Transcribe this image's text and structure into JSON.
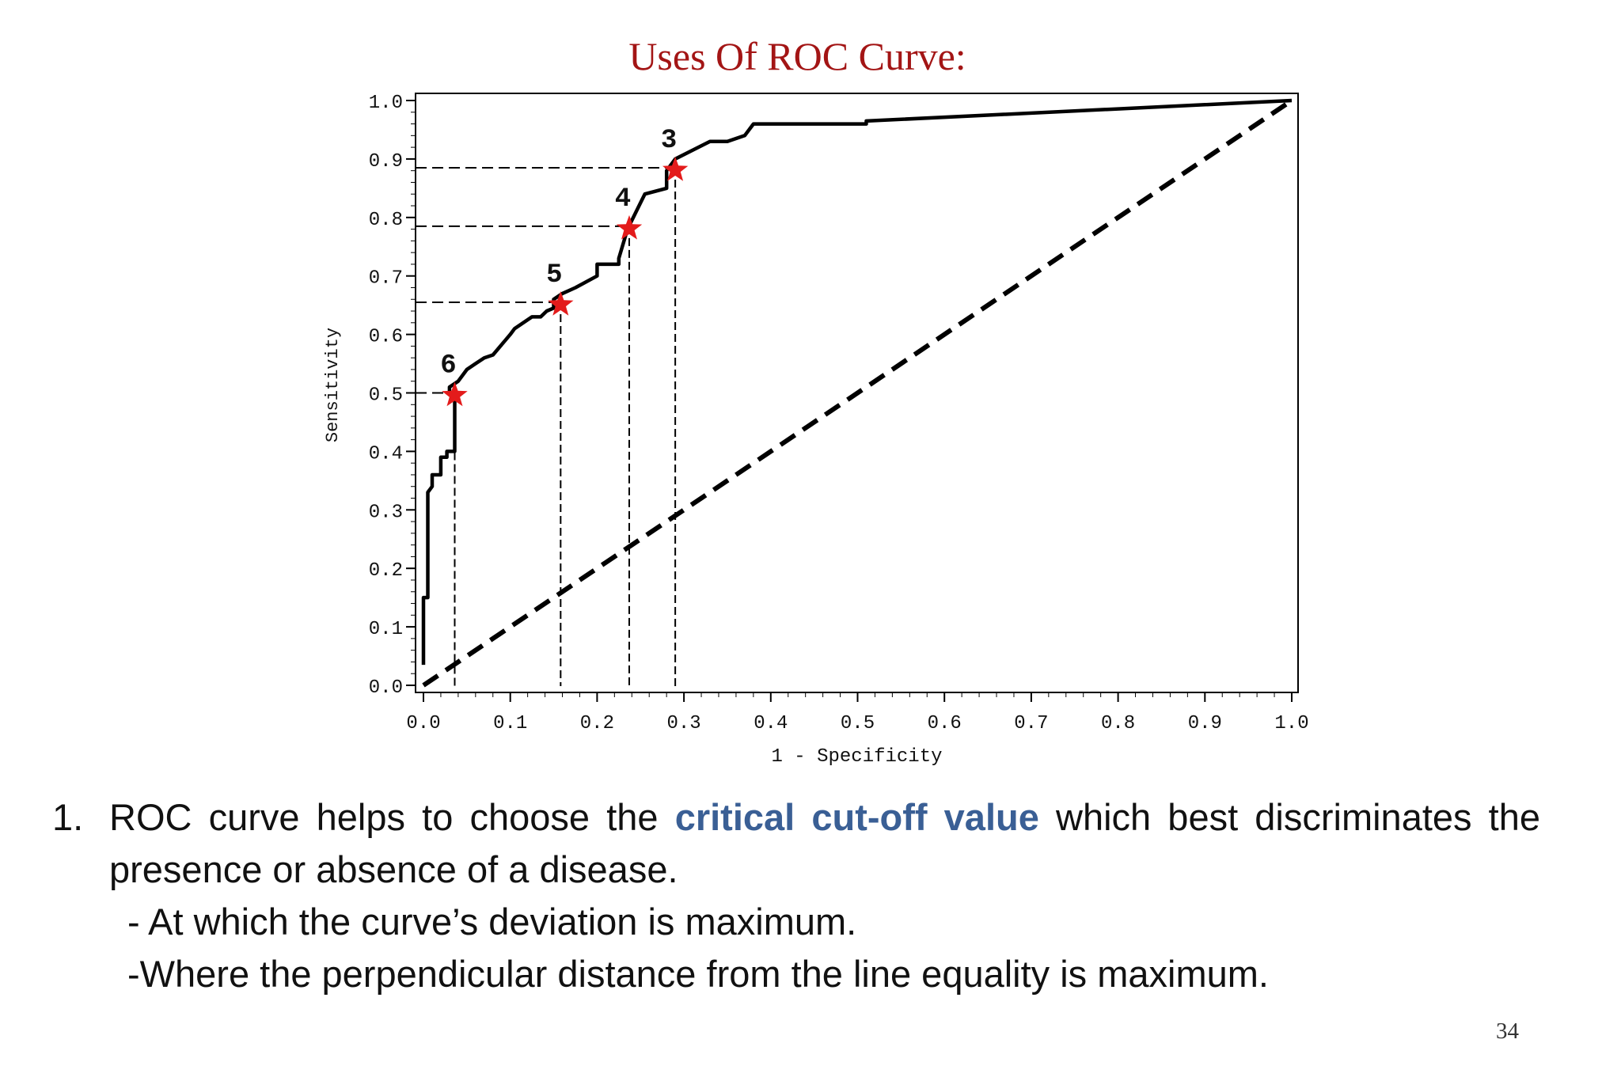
{
  "slide": {
    "title": "Uses Of ROC Curve:",
    "page_number": "34"
  },
  "content": {
    "item1": {
      "number": "1.",
      "text_before": "ROC curve helps to choose the ",
      "highlight": "critical cut-off value",
      "text_after": " which best discriminates the presence or absence of a disease."
    },
    "sub_bullets": [
      "- At which the curve’s deviation is maximum.",
      "-Where the perpendicular distance from the line equality is maximum."
    ]
  },
  "colors": {
    "title": "#a31515",
    "highlight": "#3a5f95",
    "star": "#e31b1b",
    "curve": "#000000"
  },
  "chart_data": {
    "type": "line",
    "xlabel": "1 - Specificity",
    "ylabel": "Sensitivity",
    "xlim": [
      0,
      1
    ],
    "ylim": [
      0,
      1
    ],
    "x_ticks": [
      "0.0",
      "0.1",
      "0.2",
      "0.3",
      "0.4",
      "0.5",
      "0.6",
      "0.7",
      "0.8",
      "0.9",
      "1.0"
    ],
    "y_ticks": [
      "0.0",
      "0.1",
      "0.2",
      "0.3",
      "0.4",
      "0.5",
      "0.6",
      "0.7",
      "0.8",
      "0.9",
      "1.0"
    ],
    "grid": false,
    "series": [
      {
        "style": "solid",
        "x": [
          0.0,
          0.0,
          0.005,
          0.005,
          0.01,
          0.01,
          0.02,
          0.02,
          0.027,
          0.027,
          0.036,
          0.036,
          0.03,
          0.03,
          0.04,
          0.05,
          0.06,
          0.07,
          0.08,
          0.1,
          0.105,
          0.125,
          0.135,
          0.142,
          0.15,
          0.15,
          0.16,
          0.175,
          0.2,
          0.2,
          0.225,
          0.225,
          0.235,
          0.255,
          0.28,
          0.28,
          0.29,
          0.33,
          0.35,
          0.37,
          0.38,
          0.51,
          0.51,
          1.0
        ],
        "y": [
          0.035,
          0.15,
          0.15,
          0.33,
          0.34,
          0.36,
          0.36,
          0.39,
          0.39,
          0.4,
          0.4,
          0.5,
          0.5,
          0.51,
          0.52,
          0.54,
          0.55,
          0.56,
          0.565,
          0.6,
          0.61,
          0.63,
          0.63,
          0.64,
          0.645,
          0.66,
          0.67,
          0.68,
          0.7,
          0.72,
          0.72,
          0.73,
          0.78,
          0.84,
          0.85,
          0.88,
          0.9,
          0.93,
          0.93,
          0.94,
          0.96,
          0.96,
          0.965,
          1.0
        ]
      },
      {
        "style": "dashed",
        "x": [
          0.0,
          1.0
        ],
        "y": [
          0.0,
          1.0
        ]
      }
    ],
    "cutoff_points": [
      {
        "label": "6",
        "x": 0.036,
        "y": 0.5
      },
      {
        "label": "5",
        "x": 0.158,
        "y": 0.655
      },
      {
        "label": "4",
        "x": 0.237,
        "y": 0.785
      },
      {
        "label": "3",
        "x": 0.29,
        "y": 0.885
      }
    ]
  }
}
